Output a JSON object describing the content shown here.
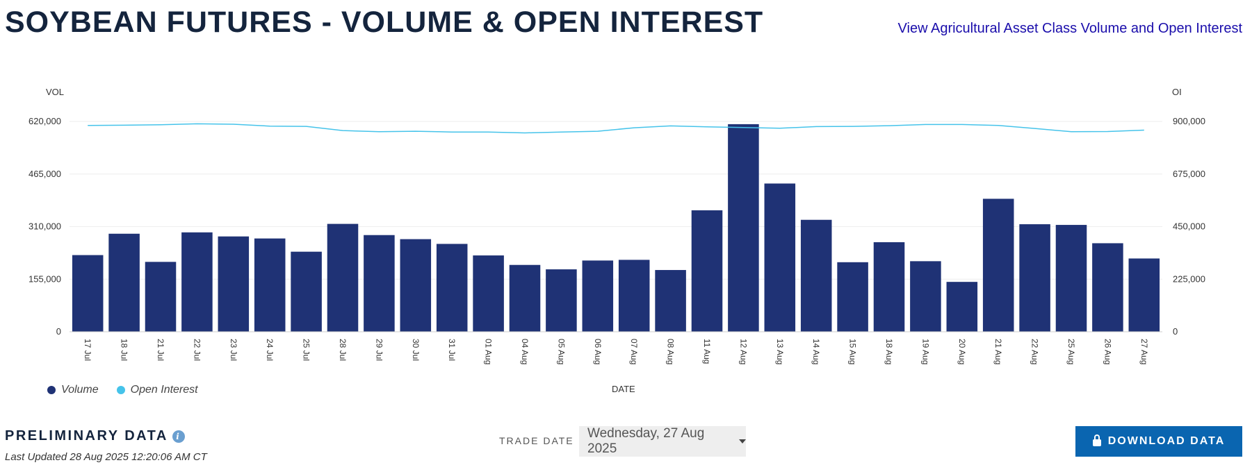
{
  "header": {
    "title": "SOYBEAN FUTURES - VOLUME & OPEN INTEREST",
    "link_label": "View Agricultural Asset Class Volume and Open Interest"
  },
  "chart_data": {
    "type": "bar+line",
    "left_axis_label": "VOL",
    "right_axis_label": "OI",
    "xlabel": "DATE",
    "left_ticks": [
      "0",
      "155,000",
      "310,000",
      "465,000",
      "620,000"
    ],
    "right_ticks": [
      "0",
      "225,000",
      "450,000",
      "675,000",
      "900,000"
    ],
    "ylim_left": [
      0,
      620000
    ],
    "ylim_right": [
      0,
      900000
    ],
    "categories": [
      "17 Jul",
      "18 Jul",
      "21 Jul",
      "22 Jul",
      "23 Jul",
      "24 Jul",
      "25 Jul",
      "28 Jul",
      "29 Jul",
      "30 Jul",
      "31 Jul",
      "01 Aug",
      "04 Aug",
      "05 Aug",
      "06 Aug",
      "07 Aug",
      "08 Aug",
      "11 Aug",
      "12 Aug",
      "13 Aug",
      "14 Aug",
      "15 Aug",
      "18 Aug",
      "19 Aug",
      "20 Aug",
      "21 Aug",
      "22 Aug",
      "25 Aug",
      "26 Aug",
      "27 Aug"
    ],
    "series": [
      {
        "name": "Volume",
        "color": "#1f3275",
        "type": "bar",
        "values": [
          226000,
          289000,
          206000,
          293000,
          281000,
          275000,
          236000,
          318000,
          285000,
          273000,
          259000,
          225000,
          197000,
          184000,
          210000,
          212000,
          182000,
          358000,
          612000,
          437000,
          330000,
          205000,
          264000,
          208000,
          147000,
          392000,
          317000,
          315000,
          261000,
          216000
        ]
      },
      {
        "name": "Open Interest",
        "color": "#45c3ea",
        "type": "line",
        "values": [
          883000,
          884000,
          886000,
          890000,
          888000,
          880000,
          879000,
          861000,
          856000,
          858000,
          855000,
          855000,
          851000,
          855000,
          858000,
          873000,
          881000,
          877000,
          874000,
          871000,
          878000,
          879000,
          882000,
          887000,
          887000,
          883000,
          870000,
          856000,
          857000,
          863000
        ]
      }
    ],
    "legend_position": "bottom-left",
    "grid": true
  },
  "footer": {
    "preliminary_label": "PRELIMINARY DATA",
    "info_glyph": "i",
    "last_updated": "Last Updated 28 Aug 2025 12:20:06 AM CT",
    "trade_date_label": "TRADE DATE",
    "trade_date_value": "Wednesday, 27 Aug 2025",
    "download_label": "DOWNLOAD DATA"
  }
}
